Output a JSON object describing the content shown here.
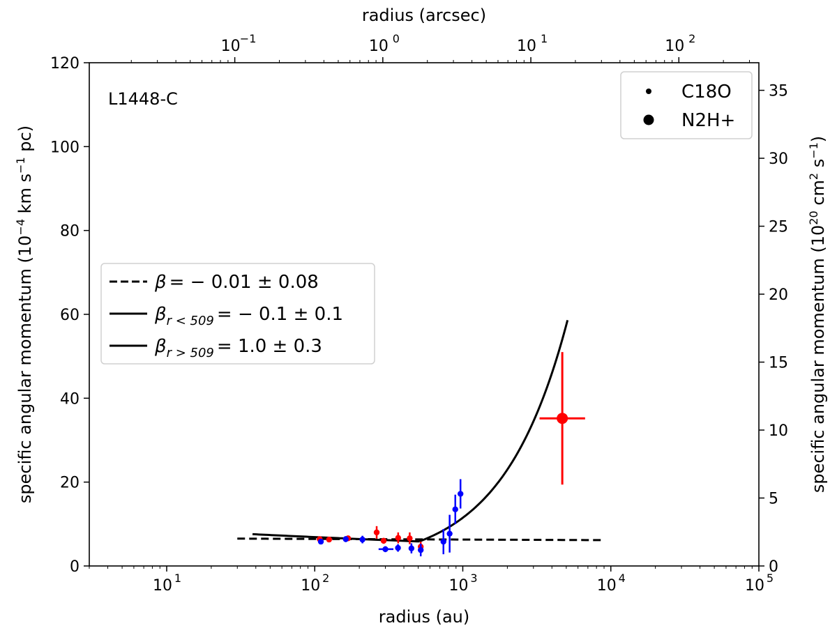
{
  "chart_data": {
    "type": "scatter",
    "annotation": "L1448-C",
    "x_axis": {
      "label": "radius (au)",
      "scale": "log",
      "range": [
        3,
        100000
      ],
      "ticks": [
        10,
        100,
        1000,
        10000,
        100000
      ],
      "tick_labels": [
        "10",
        "10",
        "10",
        "10",
        "10"
      ],
      "tick_exponents": [
        "1",
        "2",
        "3",
        "4",
        "5"
      ]
    },
    "top_axis": {
      "label": "radius (arcsec)",
      "scale": "log",
      "range": [
        0.0104,
        347.2
      ],
      "ticks": [
        0.1,
        1,
        10,
        100
      ],
      "tick_labels": [
        "10",
        "10",
        "10",
        "10"
      ],
      "tick_exponents": [
        "−1",
        "0",
        "1",
        "2"
      ]
    },
    "y_axis": {
      "label_parts": [
        "specific angular momentum (10",
        "−4",
        " km s",
        "−1",
        " pc)"
      ],
      "range": [
        0,
        120
      ],
      "ticks": [
        0,
        20,
        40,
        60,
        80,
        100,
        120
      ],
      "tick_labels": [
        "0",
        "20",
        "40",
        "60",
        "80",
        "100",
        "120"
      ]
    },
    "right_axis": {
      "label_parts": [
        "specific angular momentum (10",
        "20",
        " cm",
        "2",
        " s",
        "−1",
        ")"
      ],
      "range": [
        0,
        37.03
      ],
      "ticks": [
        0,
        5,
        10,
        15,
        20,
        25,
        30,
        35
      ],
      "tick_labels": [
        "0",
        "5",
        "10",
        "15",
        "20",
        "25",
        "30",
        "35"
      ]
    },
    "series": [
      {
        "name": "C18O red",
        "color": "#ff0000",
        "marker": "small",
        "points": [
          {
            "x": 108,
            "y": 6.4,
            "yerr": 0.5
          },
          {
            "x": 125,
            "y": 6.3,
            "yerr": 0.5
          },
          {
            "x": 168,
            "y": 6.6,
            "yerr": 0.6
          },
          {
            "x": 262,
            "y": 8.0,
            "yerr": 1.5
          },
          {
            "x": 292,
            "y": 6.0,
            "yerr": 0.7
          },
          {
            "x": 366,
            "y": 6.7,
            "yerr": 1.3
          },
          {
            "x": 438,
            "y": 6.6,
            "yerr": 1.4
          },
          {
            "x": 520,
            "y": 4.6,
            "yerr": 1.2
          }
        ]
      },
      {
        "name": "C18O blue",
        "color": "#0000ff",
        "marker": "small",
        "points": [
          {
            "x": 110,
            "y": 5.8,
            "yerr": 0.6
          },
          {
            "x": 162,
            "y": 6.4,
            "yerr": 0.7
          },
          {
            "x": 210,
            "y": 6.3,
            "yerr": 0.9
          },
          {
            "x": 300,
            "y": 4.0,
            "yerr": 0.7,
            "xerr": [
              270,
              340
            ]
          },
          {
            "x": 365,
            "y": 4.3,
            "yerr": 0.9
          },
          {
            "x": 450,
            "y": 4.2,
            "yerr": 1.2
          },
          {
            "x": 520,
            "y": 3.8,
            "yerr": 1.5
          },
          {
            "x": 740,
            "y": 5.8,
            "yerr": 3.0
          },
          {
            "x": 815,
            "y": 7.7,
            "yerr": 4.5
          },
          {
            "x": 890,
            "y": 13.5,
            "yerr": 3.5
          },
          {
            "x": 965,
            "y": 17.2,
            "yerr": 3.5
          }
        ]
      },
      {
        "name": "N2H+ red",
        "color": "#ff0000",
        "marker": "large",
        "points": [
          {
            "x": 4700,
            "y": 35.2,
            "yerr_low": 15.8,
            "yerr_high": 15.8,
            "xerr": [
              3300,
              6700
            ]
          }
        ]
      }
    ],
    "fits": [
      {
        "label_parts": [
          "β",
          "",
          "= − 0.01 ± 0.08"
        ],
        "style": "dashed",
        "x_start": 30,
        "x_end": 9000,
        "a": 6.34,
        "beta": -0.01
      },
      {
        "label_parts": [
          "β",
          "r < 509",
          "= − 0.1 ± 0.1"
        ],
        "style": "solid",
        "x_start": 38,
        "x_end": 509,
        "a": 5.85,
        "beta": -0.1
      },
      {
        "label_parts": [
          "β",
          "r > 509",
          "= 1.0 ± 0.3"
        ],
        "style": "solid",
        "x_start": 509,
        "x_end": 5100,
        "a": 5.85,
        "beta": 1.0
      }
    ],
    "legend_markers": [
      {
        "label": "C18O",
        "marker": "small"
      },
      {
        "label": "N2H+",
        "marker": "large"
      }
    ],
    "legend_placement": {
      "markers": "top-right",
      "fits": "center-left"
    }
  }
}
